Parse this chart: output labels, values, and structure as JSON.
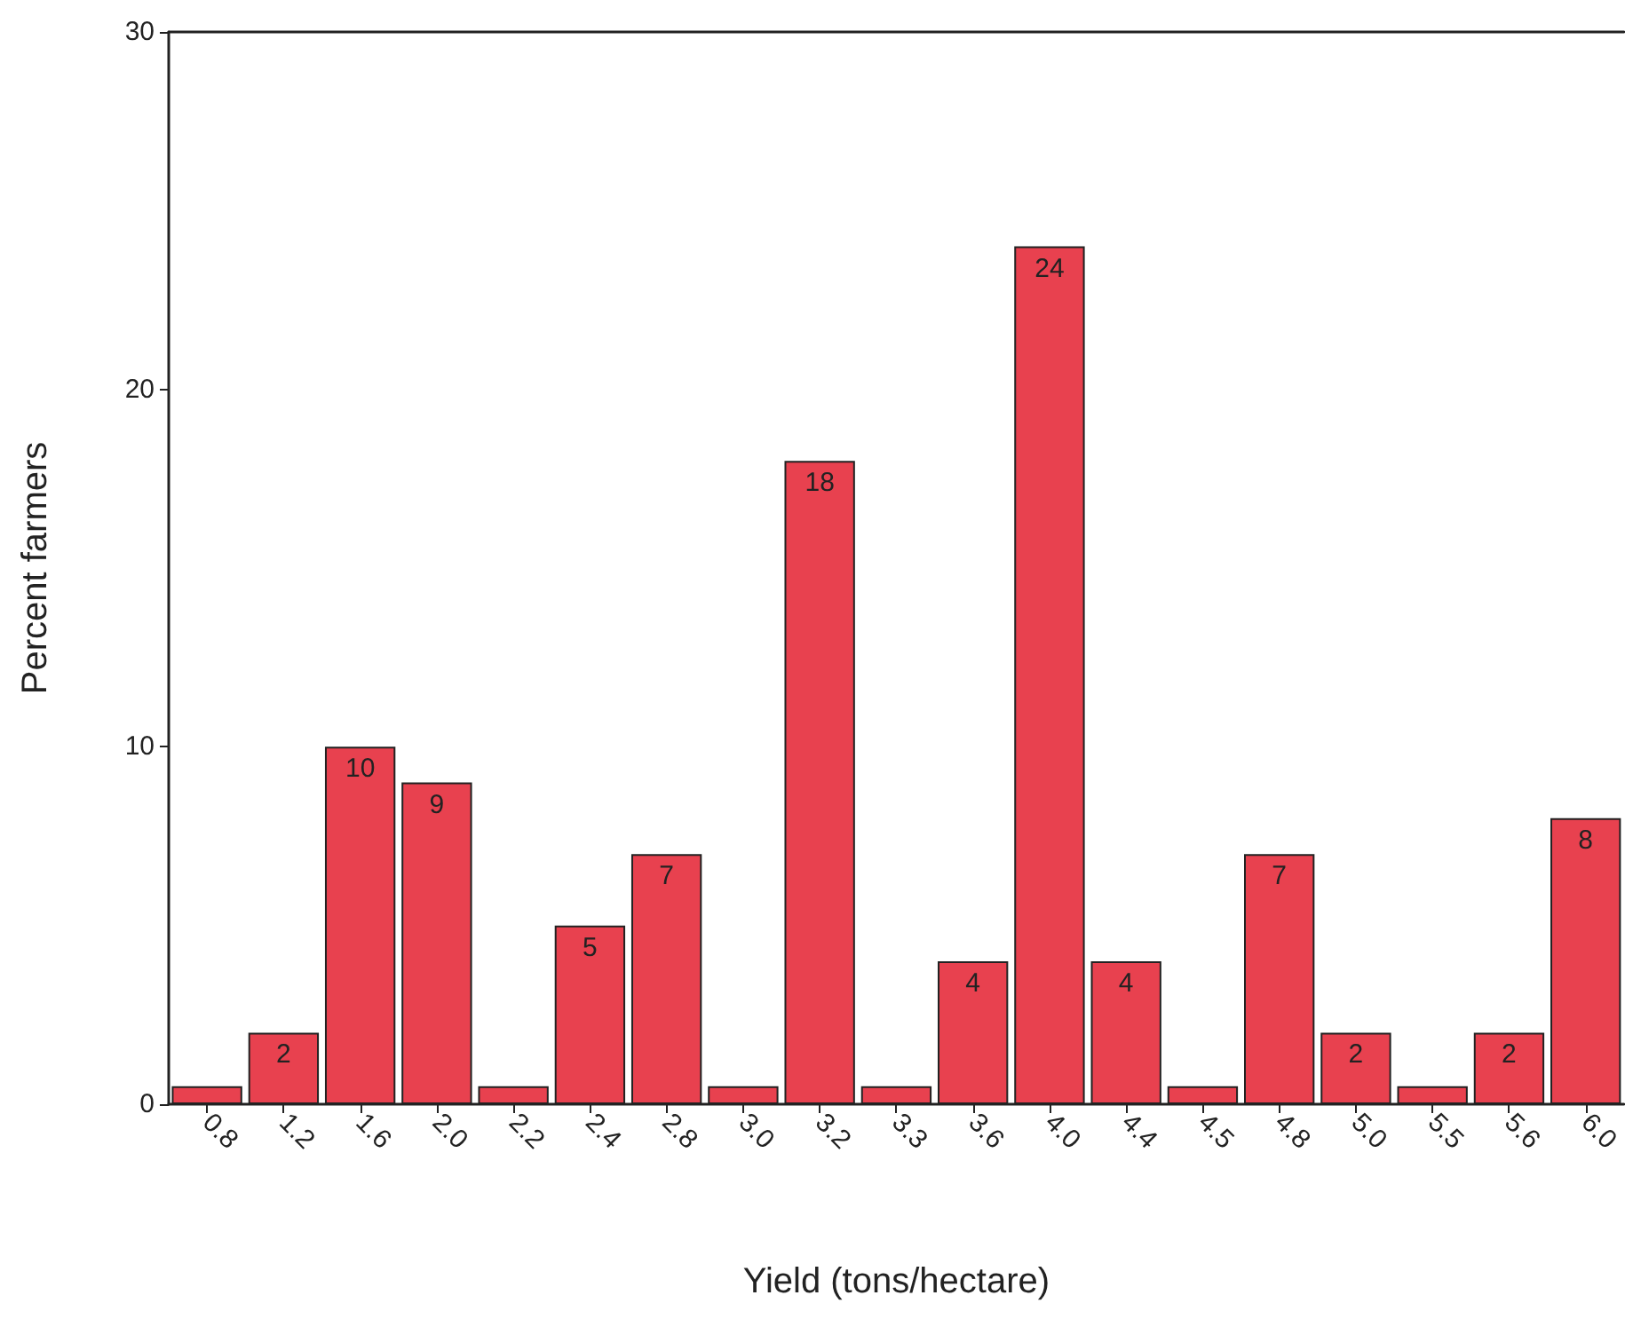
{
  "chart_data": {
    "type": "bar",
    "xlabel": "Yield (tons/hectare)",
    "ylabel": "Percent farmers",
    "categories": [
      "0.8",
      "1.2",
      "1.6",
      "2.0",
      "2.2",
      "2.4",
      "2.8",
      "3.0",
      "3.2",
      "3.3",
      "3.6",
      "4.0",
      "4.4",
      "4.5",
      "4.8",
      "5.0",
      "5.5",
      "5.6",
      "6.0"
    ],
    "values": [
      0.5,
      2,
      10,
      9,
      0.5,
      5,
      7,
      0.5,
      18,
      0.5,
      4,
      24,
      4,
      0.5,
      7,
      2,
      0.5,
      2,
      8
    ],
    "value_labels": [
      null,
      "2",
      "10",
      "9",
      null,
      "5",
      "7",
      null,
      "18",
      null,
      "4",
      "24",
      "4",
      null,
      "7",
      "2",
      null,
      "2",
      "8"
    ],
    "color": "#e8414f",
    "ylim": [
      0,
      30
    ],
    "yticks": [
      0,
      10,
      20,
      30
    ],
    "grid": false
  }
}
